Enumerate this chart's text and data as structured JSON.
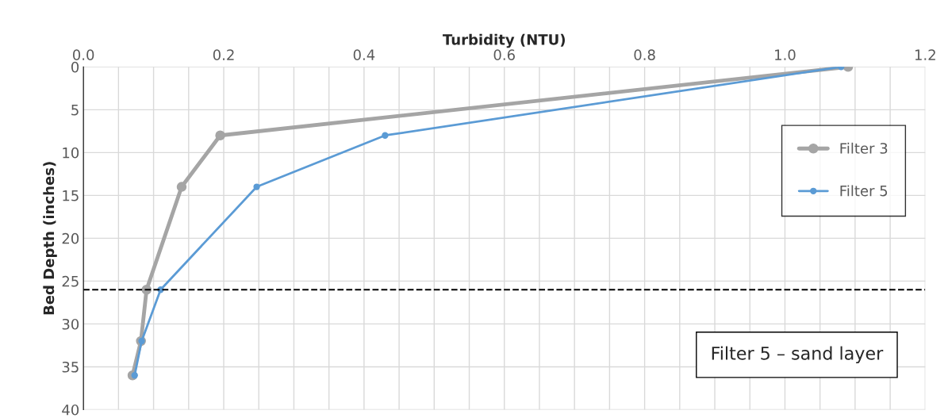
{
  "chart_data": {
    "type": "line",
    "xlabel": "Turbidity (NTU)",
    "ylabel": "Bed Depth (inches)",
    "xlim": [
      0,
      1.2
    ],
    "xticks": [
      {
        "value": 0,
        "label": "0.0"
      },
      {
        "value": 0.05,
        "label": null
      },
      {
        "value": 0.1,
        "label": null
      },
      {
        "value": 0.15,
        "label": null
      },
      {
        "value": 0.2,
        "label": "0.2"
      },
      {
        "value": 0.25,
        "label": null
      },
      {
        "value": 0.3,
        "label": null
      },
      {
        "value": 0.35,
        "label": null
      },
      {
        "value": 0.4,
        "label": "0.4"
      },
      {
        "value": 0.45,
        "label": null
      },
      {
        "value": 0.5,
        "label": null
      },
      {
        "value": 0.55,
        "label": null
      },
      {
        "value": 0.6,
        "label": "0.6"
      },
      {
        "value": 0.65,
        "label": null
      },
      {
        "value": 0.7,
        "label": null
      },
      {
        "value": 0.75,
        "label": null
      },
      {
        "value": 0.8,
        "label": "0.8"
      },
      {
        "value": 0.85,
        "label": null
      },
      {
        "value": 0.9,
        "label": null
      },
      {
        "value": 0.95,
        "label": null
      },
      {
        "value": 1.0,
        "label": "1.0"
      },
      {
        "value": 1.05,
        "label": null
      },
      {
        "value": 1.1,
        "label": null
      },
      {
        "value": 1.15,
        "label": null
      },
      {
        "value": 1.2,
        "label": "1.2"
      }
    ],
    "ylim": [
      40,
      0
    ],
    "yticks": [
      0,
      5,
      10,
      15,
      20,
      25,
      30,
      35,
      40
    ],
    "series": [
      {
        "name": "Filter 3",
        "color": "#a5a5a5",
        "x": [
          1.09,
          0.195,
          0.14,
          0.09,
          0.082,
          0.07
        ],
        "values": [
          0,
          8,
          14,
          26,
          32,
          36
        ]
      },
      {
        "name": "Filter 5",
        "color": "#5b9bd5",
        "x": [
          1.08,
          0.43,
          0.247,
          0.11,
          0.083,
          0.073
        ],
        "values": [
          0,
          8,
          14,
          26,
          32,
          36
        ]
      }
    ],
    "ref_lines": [
      {
        "axis": "y",
        "value": 26,
        "color": "#000000",
        "line_style": "dashed"
      }
    ],
    "annotations": [
      "Filter 5 – sand layer"
    ],
    "marker": "circle",
    "grid": true,
    "legend": "top right"
  }
}
